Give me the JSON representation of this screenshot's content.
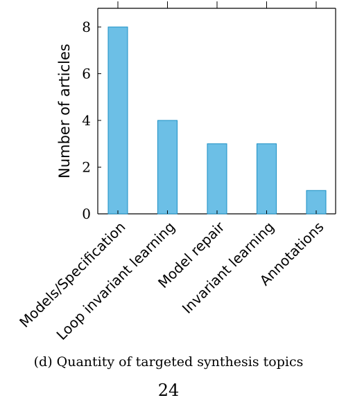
{
  "caption": "(d) Quantity of targeted synthesis topics",
  "page_number": "24",
  "colors": {
    "bar_fill": "#6cbfe6",
    "bar_stroke": "#1a8fc4",
    "axis": "#000000"
  },
  "chart_data": {
    "type": "bar",
    "title": "",
    "xlabel": "",
    "ylabel": "Number of articles",
    "categories": [
      "Models/Specification",
      "Loop invariant learning",
      "Model repair",
      "Invariant learning",
      "Annotations"
    ],
    "values": [
      8,
      4,
      3,
      3,
      1
    ],
    "ylim": [
      0,
      8.8
    ],
    "yticks": [
      "0",
      "2",
      "4",
      "6",
      "8"
    ],
    "grid": false,
    "legend": "none"
  }
}
